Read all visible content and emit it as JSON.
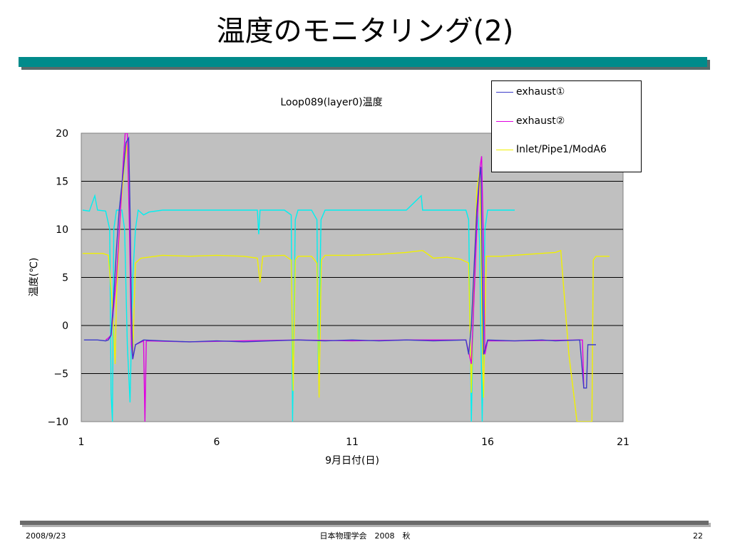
{
  "slide": {
    "title": "温度のモニタリング(2)",
    "footer_date": "2008/9/23",
    "footer_center": "日本物理学会　2008　秋",
    "page_number": "22"
  },
  "chart_data": {
    "type": "line",
    "title": "Loop089(layer0)温度",
    "xlabel": "9月日付(日)",
    "ylabel": "温度(℃)",
    "xlim": [
      1,
      21
    ],
    "ylim": [
      -10,
      20
    ],
    "x_ticks": [
      1,
      6,
      11,
      16,
      21
    ],
    "y_ticks": [
      20,
      15,
      10,
      5,
      0,
      -5,
      -10
    ],
    "y_tick_labels": [
      "20",
      "15",
      "10",
      "5",
      "0",
      "−5",
      "−10"
    ],
    "grid": true,
    "plot_background": "#c0c0c0",
    "legend_position": "top-right",
    "series": [
      {
        "name": "exhaust①",
        "color": "#3c3cc8",
        "points": [
          [
            1.1,
            -1.5
          ],
          [
            1.6,
            -1.5
          ],
          [
            1.9,
            -1.6
          ],
          [
            2.0,
            -1.5
          ],
          [
            2.1,
            -1.0
          ],
          [
            2.2,
            3.0
          ],
          [
            2.3,
            8.0
          ],
          [
            2.4,
            12.0
          ],
          [
            2.55,
            16.0
          ],
          [
            2.65,
            19.0
          ],
          [
            2.75,
            19.5
          ],
          [
            2.8,
            12.0
          ],
          [
            2.85,
            2.0
          ],
          [
            2.9,
            -3.5
          ],
          [
            3.0,
            -2.0
          ],
          [
            3.3,
            -1.5
          ],
          [
            4.0,
            -1.6
          ],
          [
            5.0,
            -1.7
          ],
          [
            6.0,
            -1.6
          ],
          [
            7.0,
            -1.7
          ],
          [
            8.0,
            -1.6
          ],
          [
            9.0,
            -1.5
          ],
          [
            10.0,
            -1.6
          ],
          [
            11.0,
            -1.5
          ],
          [
            12.0,
            -1.6
          ],
          [
            13.0,
            -1.5
          ],
          [
            14.0,
            -1.6
          ],
          [
            15.2,
            -1.5
          ],
          [
            15.3,
            -3.0
          ],
          [
            15.4,
            0.0
          ],
          [
            15.5,
            6.0
          ],
          [
            15.6,
            12.0
          ],
          [
            15.7,
            15.5
          ],
          [
            15.75,
            16.5
          ],
          [
            15.8,
            6.0
          ],
          [
            15.85,
            -3.0
          ],
          [
            16.0,
            -1.5
          ],
          [
            17.0,
            -1.6
          ],
          [
            18.0,
            -1.5
          ],
          [
            18.5,
            -1.6
          ],
          [
            19.4,
            -1.5
          ],
          [
            19.55,
            -6.5
          ],
          [
            19.65,
            -6.5
          ],
          [
            19.7,
            -2.0
          ],
          [
            20.0,
            -2.0
          ]
        ]
      },
      {
        "name": "exhaust②",
        "color": "#e000e0",
        "points": [
          [
            1.9,
            -1.5
          ],
          [
            2.0,
            -1.3
          ],
          [
            2.1,
            -1.0
          ],
          [
            2.3,
            5.0
          ],
          [
            2.45,
            12.0
          ],
          [
            2.55,
            17.0
          ],
          [
            2.62,
            20.0
          ],
          [
            2.7,
            20.0
          ],
          [
            2.78,
            10.0
          ],
          [
            2.85,
            -2.0
          ],
          [
            2.9,
            -3.5
          ],
          [
            3.0,
            -2.0
          ],
          [
            3.3,
            -1.6
          ],
          [
            3.35,
            -10.0
          ],
          [
            3.4,
            -1.6
          ],
          [
            5.0,
            -1.7
          ],
          [
            7.0,
            -1.6
          ],
          [
            9.0,
            -1.5
          ],
          [
            11.0,
            -1.6
          ],
          [
            13.0,
            -1.5
          ],
          [
            15.2,
            -1.5
          ],
          [
            15.4,
            -4.0
          ],
          [
            15.5,
            3.0
          ],
          [
            15.6,
            10.0
          ],
          [
            15.72,
            16.5
          ],
          [
            15.78,
            17.6
          ],
          [
            15.85,
            8.0
          ],
          [
            15.9,
            -3.0
          ],
          [
            16.0,
            -1.6
          ],
          [
            17.0,
            -1.6
          ],
          [
            19.4,
            -1.5
          ],
          [
            19.5,
            -1.5
          ],
          [
            19.55,
            -6.5
          ],
          [
            19.65,
            -6.5
          ]
        ]
      },
      {
        "name": "Inlet/Pipe1/ModA6",
        "color": "#f0f000",
        "points": [
          [
            1.05,
            7.5
          ],
          [
            1.5,
            7.5
          ],
          [
            1.8,
            7.5
          ],
          [
            2.0,
            7.3
          ],
          [
            2.15,
            2.0
          ],
          [
            2.25,
            -4.0
          ],
          [
            2.3,
            3.0
          ],
          [
            2.45,
            12.0
          ],
          [
            2.6,
            17.0
          ],
          [
            2.7,
            19.0
          ],
          [
            2.8,
            8.0
          ],
          [
            2.9,
            -3.0
          ],
          [
            3.0,
            6.5
          ],
          [
            3.2,
            7.0
          ],
          [
            4.0,
            7.3
          ],
          [
            5.0,
            7.2
          ],
          [
            6.0,
            7.3
          ],
          [
            7.0,
            7.2
          ],
          [
            7.5,
            7.0
          ],
          [
            7.6,
            4.5
          ],
          [
            7.7,
            7.2
          ],
          [
            8.5,
            7.3
          ],
          [
            8.75,
            6.8
          ],
          [
            8.82,
            -6.8
          ],
          [
            8.9,
            6.8
          ],
          [
            9.0,
            7.2
          ],
          [
            9.5,
            7.2
          ],
          [
            9.7,
            6.5
          ],
          [
            9.78,
            -7.5
          ],
          [
            9.86,
            6.8
          ],
          [
            10.0,
            7.3
          ],
          [
            11.0,
            7.3
          ],
          [
            12.0,
            7.4
          ],
          [
            13.0,
            7.6
          ],
          [
            13.6,
            7.8
          ],
          [
            14.0,
            7.0
          ],
          [
            14.5,
            7.1
          ],
          [
            15.0,
            6.9
          ],
          [
            15.3,
            6.5
          ],
          [
            15.4,
            -7.0
          ],
          [
            15.5,
            5.0
          ],
          [
            15.6,
            14.0
          ],
          [
            15.7,
            16.0
          ],
          [
            15.75,
            10.0
          ],
          [
            15.8,
            -1.0
          ],
          [
            15.85,
            -7.5
          ],
          [
            15.95,
            7.2
          ],
          [
            16.5,
            7.2
          ],
          [
            17.5,
            7.4
          ],
          [
            18.5,
            7.6
          ],
          [
            18.7,
            7.8
          ],
          [
            19.0,
            -3.0
          ],
          [
            19.3,
            -10.0
          ],
          [
            19.85,
            -10.0
          ],
          [
            19.9,
            6.8
          ],
          [
            20.0,
            7.2
          ],
          [
            20.5,
            7.2
          ]
        ]
      },
      {
        "name": "",
        "color": "#00f0f0",
        "points": [
          [
            1.05,
            12.0
          ],
          [
            1.3,
            11.9
          ],
          [
            1.5,
            13.5
          ],
          [
            1.6,
            12.0
          ],
          [
            1.9,
            11.9
          ],
          [
            2.05,
            10.0
          ],
          [
            2.1,
            -7.0
          ],
          [
            2.15,
            -10.0
          ],
          [
            2.2,
            10.0
          ],
          [
            2.3,
            12.0
          ],
          [
            2.5,
            12.0
          ],
          [
            2.6,
            10.0
          ],
          [
            2.7,
            -2.0
          ],
          [
            2.8,
            -8.0
          ],
          [
            2.9,
            5.0
          ],
          [
            3.0,
            10.0
          ],
          [
            3.1,
            12.0
          ],
          [
            3.3,
            11.5
          ],
          [
            3.5,
            11.8
          ],
          [
            4.0,
            12.0
          ],
          [
            5.0,
            12.0
          ],
          [
            6.0,
            12.0
          ],
          [
            7.0,
            12.0
          ],
          [
            7.5,
            12.0
          ],
          [
            7.55,
            9.5
          ],
          [
            7.6,
            12.0
          ],
          [
            8.5,
            12.0
          ],
          [
            8.75,
            11.5
          ],
          [
            8.8,
            -10.0
          ],
          [
            8.9,
            11.0
          ],
          [
            9.0,
            12.0
          ],
          [
            9.5,
            12.0
          ],
          [
            9.7,
            11.0
          ],
          [
            9.75,
            -5.0
          ],
          [
            9.85,
            11.0
          ],
          [
            10.0,
            12.0
          ],
          [
            11.0,
            12.0
          ],
          [
            12.0,
            12.0
          ],
          [
            13.0,
            12.0
          ],
          [
            13.55,
            13.5
          ],
          [
            13.6,
            12.0
          ],
          [
            14.5,
            12.0
          ],
          [
            15.2,
            12.0
          ],
          [
            15.3,
            11.0
          ],
          [
            15.4,
            -10.0
          ],
          [
            15.5,
            5.0
          ],
          [
            15.6,
            13.0
          ],
          [
            15.7,
            9.0
          ],
          [
            15.8,
            -10.0
          ],
          [
            15.9,
            10.0
          ],
          [
            16.0,
            12.0
          ],
          [
            16.5,
            12.0
          ],
          [
            17.0,
            12.0
          ]
        ]
      }
    ]
  }
}
